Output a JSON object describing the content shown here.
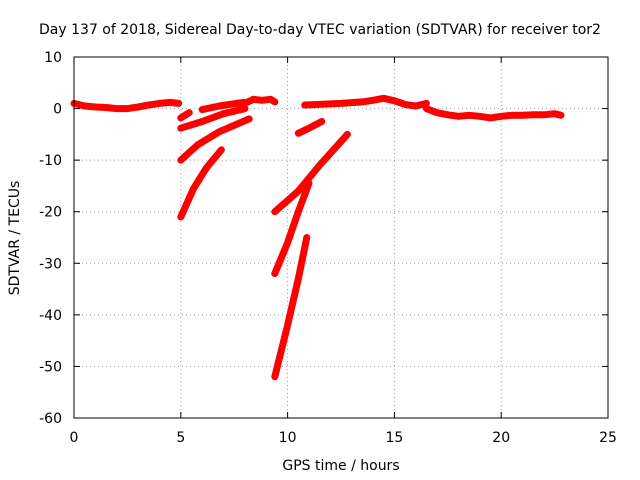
{
  "chart_data": {
    "type": "line",
    "title": "Day 137 of 2018, Sidereal Day-to-day VTEC variation (SDTVAR) for receiver tor2",
    "xlabel": "GPS time / hours",
    "ylabel": "SDTVAR / TECUs",
    "xlim": [
      0,
      25
    ],
    "ylim": [
      -60,
      10
    ],
    "xticks": [
      0,
      5,
      10,
      15,
      20,
      25
    ],
    "yticks": [
      -60,
      -50,
      -40,
      -30,
      -20,
      -10,
      0,
      10
    ],
    "grid": true,
    "series_color": "#ff0000",
    "series": [
      {
        "name": "main-trace",
        "x": [
          0,
          0.5,
          1,
          1.5,
          2,
          2.5,
          3,
          3.5,
          4,
          4.5,
          4.9
        ],
        "y": [
          1.0,
          0.5,
          0.3,
          0.2,
          0.0,
          0.0,
          0.3,
          0.7,
          1.0,
          1.2,
          1.0
        ]
      },
      {
        "name": "arc-short-5",
        "x": [
          5.0,
          5.4
        ],
        "y": [
          -1.8,
          -0.8
        ]
      },
      {
        "name": "arc-upper-6",
        "x": [
          6.0,
          6.8,
          7.6,
          8.0
        ],
        "y": [
          -0.2,
          0.5,
          1.0,
          1.2
        ]
      },
      {
        "name": "arc-bump-8-9",
        "x": [
          8.0,
          8.4,
          8.8,
          9.2,
          9.4
        ],
        "y": [
          1.0,
          1.8,
          1.6,
          1.8,
          1.3
        ]
      },
      {
        "name": "arc-mid-5-8",
        "x": [
          5.0,
          6.0,
          7.0,
          8.0
        ],
        "y": [
          -3.8,
          -2.5,
          -1.0,
          0.0
        ]
      },
      {
        "name": "arc-lower-5-8",
        "x": [
          5.0,
          5.8,
          6.8,
          8.2
        ],
        "y": [
          -10.0,
          -7.0,
          -4.5,
          -2.0
        ]
      },
      {
        "name": "arc-steep-5-7",
        "x": [
          5.0,
          5.6,
          6.2,
          6.9
        ],
        "y": [
          -21.0,
          -15.5,
          -11.5,
          -8.0
        ]
      },
      {
        "name": "main-trace-2",
        "x": [
          10.8,
          11.5,
          12.5,
          13.5,
          14.0,
          14.5,
          15.0,
          15.5,
          16.0,
          16.5
        ],
        "y": [
          0.7,
          0.8,
          1.0,
          1.3,
          1.6,
          2.0,
          1.5,
          0.8,
          0.5,
          1.0
        ]
      },
      {
        "name": "main-trace-3",
        "x": [
          16.5,
          17.0,
          17.5,
          18.0,
          18.5,
          19.0,
          19.5,
          20.0,
          20.5,
          21.0,
          21.5,
          22.0,
          22.5,
          22.8
        ],
        "y": [
          0.0,
          -0.8,
          -1.2,
          -1.5,
          -1.3,
          -1.5,
          -1.8,
          -1.5,
          -1.3,
          -1.3,
          -1.2,
          -1.2,
          -1.0,
          -1.3
        ]
      },
      {
        "name": "arc-short-11",
        "x": [
          10.5,
          11.0,
          11.6
        ],
        "y": [
          -4.8,
          -3.8,
          -2.5
        ]
      },
      {
        "name": "arc-long-9-13",
        "x": [
          9.4,
          10.5,
          11.5,
          12.8
        ],
        "y": [
          -20.0,
          -16.0,
          -11.0,
          -5.0
        ]
      },
      {
        "name": "arc-steep-9-11",
        "x": [
          9.4,
          10.0,
          10.5,
          11.0
        ],
        "y": [
          -32.0,
          -26.0,
          -20.0,
          -14.5
        ]
      },
      {
        "name": "arc-deepest-9-11",
        "x": [
          9.4,
          10.0,
          10.5,
          10.9
        ],
        "y": [
          -52.0,
          -42.0,
          -33.0,
          -25.0
        ]
      }
    ]
  }
}
